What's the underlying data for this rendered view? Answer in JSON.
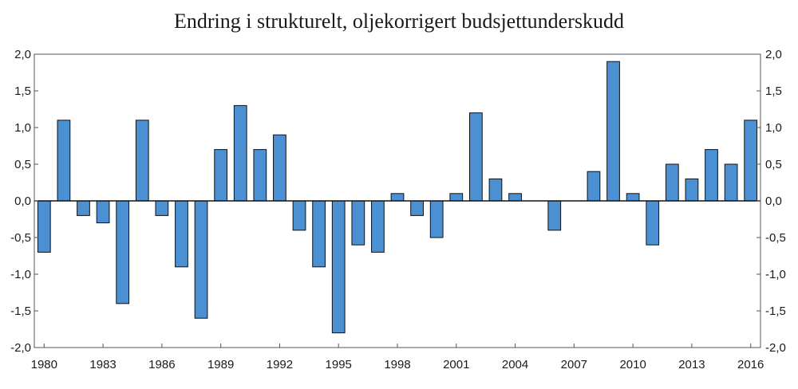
{
  "chart_data": {
    "type": "bar",
    "title": "Endring i strukturelt, oljekorrigert budsjettunderskudd",
    "xlabel": "",
    "ylabel": "",
    "categories": [
      "1980",
      "1981",
      "1982",
      "1983",
      "1984",
      "1985",
      "1986",
      "1987",
      "1988",
      "1989",
      "1990",
      "1991",
      "1992",
      "1993",
      "1994",
      "1995",
      "1996",
      "1997",
      "1998",
      "1999",
      "2000",
      "2001",
      "2002",
      "2003",
      "2004",
      "2005",
      "2006",
      "2007",
      "2008",
      "2009",
      "2010",
      "2011",
      "2012",
      "2013",
      "2014",
      "2015",
      "2016"
    ],
    "values": [
      -0.7,
      1.1,
      -0.2,
      -0.3,
      -1.4,
      1.1,
      -0.2,
      -0.9,
      -1.6,
      0.7,
      1.3,
      0.7,
      0.9,
      -0.4,
      -0.9,
      -1.8,
      -0.6,
      -0.7,
      0.1,
      -0.2,
      -0.5,
      0.1,
      1.2,
      0.3,
      0.1,
      0.0,
      -0.4,
      0.0,
      0.4,
      1.9,
      0.1,
      -0.6,
      0.5,
      0.3,
      0.7,
      0.5,
      1.1
    ],
    "x_tick_labels": [
      "1980",
      "1983",
      "1986",
      "1989",
      "1992",
      "1995",
      "1998",
      "2001",
      "2004",
      "2007",
      "2010",
      "2013",
      "2016"
    ],
    "y_tick_labels": [
      "2,0",
      "1,5",
      "1,0",
      "0,5",
      "0,0",
      "-0,5",
      "-1,0",
      "-1,5",
      "-2,0"
    ],
    "ylim": [
      -2.0,
      2.0
    ],
    "grid": false,
    "bar_color": "#4a90d2",
    "bar_edge_color": "#111111",
    "axis_color": "#555555",
    "zero_line_color": "#111111"
  }
}
